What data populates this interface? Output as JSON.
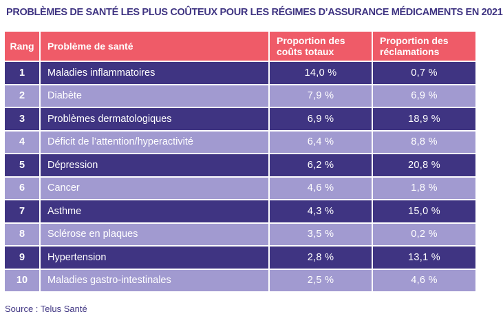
{
  "title": "PROBLÈMES DE SANTÉ LES PLUS COÛTEUX POUR LES RÉGIMES D’ASSURANCE MÉDICAMENTS EN 2021",
  "source": "Source : Telus Santé",
  "colors": {
    "title": "#3f3482",
    "header_bg": "#ef5b68",
    "row_dark": "#3f3482",
    "row_light": "#a19ad0"
  },
  "chart_data": {
    "type": "table",
    "title": "PROBLÈMES DE SANTÉ LES PLUS COÛTEUX POUR LES RÉGIMES D’ASSURANCE MÉDICAMENTS EN 2021",
    "columns": [
      "Rang",
      "Problème de santé",
      "Proportion des coûts totaux",
      "Proportion des réclamations"
    ],
    "header_lines": [
      [
        "Rang"
      ],
      [
        "Problème de santé"
      ],
      [
        "Proportion des",
        "coûts totaux"
      ],
      [
        "Proportion des",
        "réclamations"
      ]
    ],
    "rows": [
      [
        "1",
        "Maladies inflammatoires",
        "14,0 %",
        "0,7 %"
      ],
      [
        "2",
        "Diabète",
        "7,9 %",
        "6,9 %"
      ],
      [
        "3",
        "Problèmes dermatologiques",
        "6,9 %",
        "18,9 %"
      ],
      [
        "4",
        "Déficit de l’attention/hyperactivité",
        "6,4 %",
        "8,8 %"
      ],
      [
        "5",
        "Dépression",
        "6,2 %",
        "20,8 %"
      ],
      [
        "6",
        "Cancer",
        "4,6 %",
        "1,8 %"
      ],
      [
        "7",
        "Asthme",
        "4,3 %",
        "15,0 %"
      ],
      [
        "8",
        "Sclérose en plaques",
        "3,5 %",
        "0,2 %"
      ],
      [
        "9",
        "Hypertension",
        "2,8 %",
        "13,1 %"
      ],
      [
        "10",
        "Maladies gastro-intestinales",
        "2,5 %",
        "4,6 %"
      ]
    ],
    "values_cost_share_pct": [
      14.0,
      7.9,
      6.9,
      6.4,
      6.2,
      4.6,
      4.3,
      3.5,
      2.8,
      2.5
    ],
    "values_claims_share_pct": [
      0.7,
      6.9,
      18.9,
      8.8,
      20.8,
      1.8,
      15.0,
      0.2,
      13.1,
      4.6
    ]
  }
}
